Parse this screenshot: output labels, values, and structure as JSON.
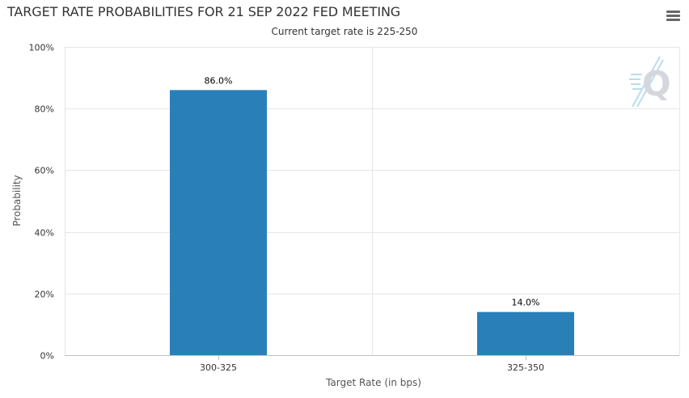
{
  "header": {
    "title": "TARGET RATE PROBABILITIES FOR 21 SEP 2022 FED MEETING",
    "subtitle": "Current target rate is 225-250",
    "menu_icon": "hamburger-menu-icon",
    "logo_icon": "quikstrike-q-logo-icon"
  },
  "chart_data": {
    "type": "bar",
    "title": "TARGET RATE PROBABILITIES FOR 21 SEP 2022 FED MEETING",
    "subtitle": "Current target rate is 225-250",
    "xlabel": "Target Rate (in bps)",
    "ylabel": "Probability",
    "categories": [
      "300-325",
      "325-350"
    ],
    "values": [
      86.0,
      14.0
    ],
    "data_labels": [
      "86.0%",
      "14.0%"
    ],
    "ylim": [
      0,
      100
    ],
    "yticks": [
      "0%",
      "20%",
      "40%",
      "60%",
      "80%",
      "100%"
    ],
    "ytick_values": [
      0,
      20,
      40,
      60,
      80,
      100
    ],
    "grid": true,
    "bar_color": "#2980b9",
    "grid_color": "#e6e6e6"
  }
}
